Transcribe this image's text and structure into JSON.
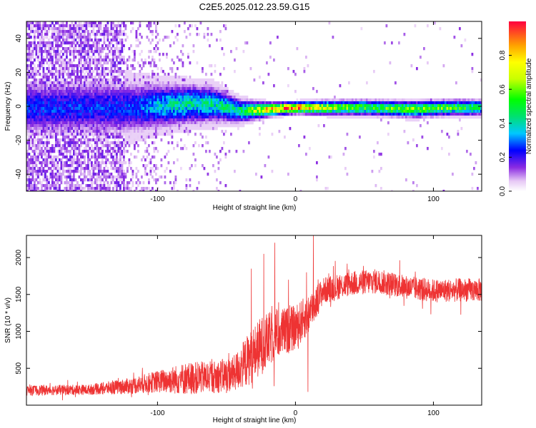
{
  "title": "C2E5.2025.012.23.59.G15",
  "chart_data": [
    {
      "type": "heatmap",
      "xlabel": "Height of straight line (km)",
      "ylabel": "Frequency (Hz)",
      "xlim": [
        -195,
        135
      ],
      "ylim": [
        -50,
        50
      ],
      "xticks": [
        -100,
        0,
        100
      ],
      "yticks": [
        -40,
        -20,
        0,
        20,
        40
      ],
      "colorbar": {
        "label": "Normalized spectral amplitude",
        "range": [
          0,
          1
        ],
        "ticks": [
          0.0,
          0.2,
          0.4,
          0.6,
          0.8
        ],
        "tick_labels": [
          "0.0",
          "0.2",
          "0.4",
          "0.6",
          "0.8"
        ]
      },
      "ridge": [
        {
          "x": -120,
          "center": 0,
          "width": 12,
          "amp": 0.25
        },
        {
          "x": -100,
          "center": 1,
          "width": 10,
          "amp": 0.35
        },
        {
          "x": -80,
          "center": 2,
          "width": 9,
          "amp": 0.4
        },
        {
          "x": -60,
          "center": 2,
          "width": 8,
          "amp": 0.4
        },
        {
          "x": -40,
          "center": -2,
          "width": 5,
          "amp": 0.45
        },
        {
          "x": -20,
          "center": -1,
          "width": 3,
          "amp": 0.8
        },
        {
          "x": 0,
          "center": 0,
          "width": 2.5,
          "amp": 0.95
        },
        {
          "x": 20,
          "center": 0,
          "width": 3,
          "amp": 0.7
        },
        {
          "x": 50,
          "center": 0,
          "width": 3.5,
          "amp": 0.5
        },
        {
          "x": 85,
          "center": -1,
          "width": 3.5,
          "amp": 0.6
        },
        {
          "x": 110,
          "center": 0,
          "width": 3.5,
          "amp": 0.55
        },
        {
          "x": 135,
          "center": 0,
          "width": 3.5,
          "amp": 0.45
        }
      ]
    },
    {
      "type": "line",
      "xlabel": "Height of straight line (km)",
      "ylabel": "SNR (10 * v/v)",
      "xlim": [
        -195,
        135
      ],
      "ylim": [
        0,
        2300
      ],
      "xticks": [
        -100,
        0,
        100
      ],
      "yticks": [
        500,
        1000,
        1500,
        2000
      ],
      "color": "#ee3333",
      "envelope": [
        {
          "x": -195,
          "mean": 200,
          "spread": 70
        },
        {
          "x": -150,
          "mean": 210,
          "spread": 70
        },
        {
          "x": -120,
          "mean": 260,
          "spread": 110
        },
        {
          "x": -100,
          "mean": 320,
          "spread": 150
        },
        {
          "x": -80,
          "mean": 360,
          "spread": 220
        },
        {
          "x": -60,
          "mean": 380,
          "spread": 220
        },
        {
          "x": -45,
          "mean": 420,
          "spread": 240
        },
        {
          "x": -35,
          "mean": 600,
          "spread": 350
        },
        {
          "x": -25,
          "mean": 800,
          "spread": 400
        },
        {
          "x": -15,
          "mean": 950,
          "spread": 350
        },
        {
          "x": 0,
          "mean": 1050,
          "spread": 300
        },
        {
          "x": 10,
          "mean": 1250,
          "spread": 280
        },
        {
          "x": 20,
          "mean": 1550,
          "spread": 180
        },
        {
          "x": 40,
          "mean": 1650,
          "spread": 170
        },
        {
          "x": 60,
          "mean": 1680,
          "spread": 170
        },
        {
          "x": 80,
          "mean": 1600,
          "spread": 160
        },
        {
          "x": 100,
          "mean": 1550,
          "spread": 160
        },
        {
          "x": 120,
          "mean": 1560,
          "spread": 160
        },
        {
          "x": 135,
          "mean": 1560,
          "spread": 160
        }
      ],
      "spikes": [
        {
          "x": -32,
          "y": 1850
        },
        {
          "x": -23,
          "y": 2050
        },
        {
          "x": -15,
          "y": 2200
        },
        {
          "x": -5,
          "y": 1700
        },
        {
          "x": 8,
          "y": 1800
        },
        {
          "x": 13,
          "y": 2300
        },
        {
          "x": 9,
          "y": 180
        }
      ]
    }
  ]
}
